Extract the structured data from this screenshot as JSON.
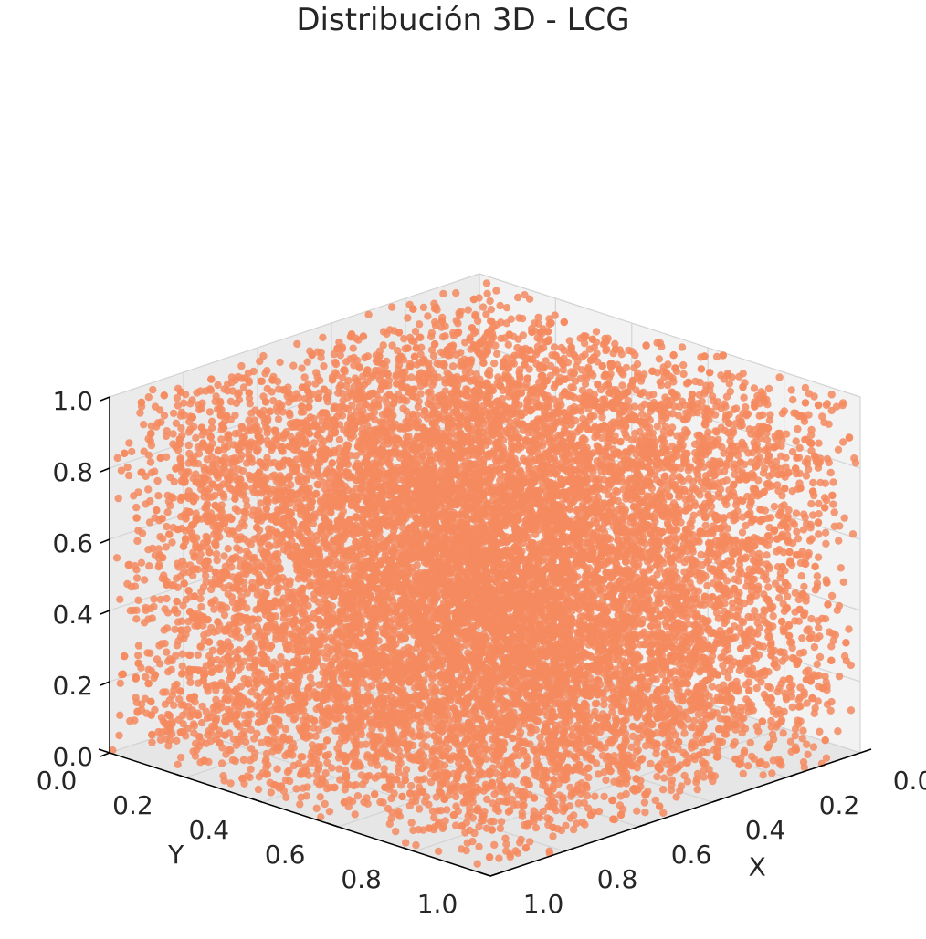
{
  "chart_data": {
    "type": "scatter",
    "projection": "3d",
    "title": "Distribución 3D - LCG",
    "xlabel": "X",
    "ylabel": "Y",
    "zlabel": "",
    "xlim": [
      0,
      1
    ],
    "ylim": [
      0,
      1
    ],
    "zlim": [
      0,
      1
    ],
    "x_ticks": [
      "0.0",
      "0.2",
      "0.4",
      "0.6",
      "0.8",
      "1.0"
    ],
    "y_ticks": [
      "0.0",
      "0.2",
      "0.4",
      "0.6",
      "0.8",
      "1.0"
    ],
    "z_ticks": [
      "0.0",
      "0.2",
      "0.4",
      "0.6",
      "0.8",
      "1.0"
    ],
    "distribution": "uniform",
    "point_color": "#f4895f",
    "grid": true,
    "legend": "none",
    "view": {
      "elev": 30,
      "azim": 45
    }
  }
}
